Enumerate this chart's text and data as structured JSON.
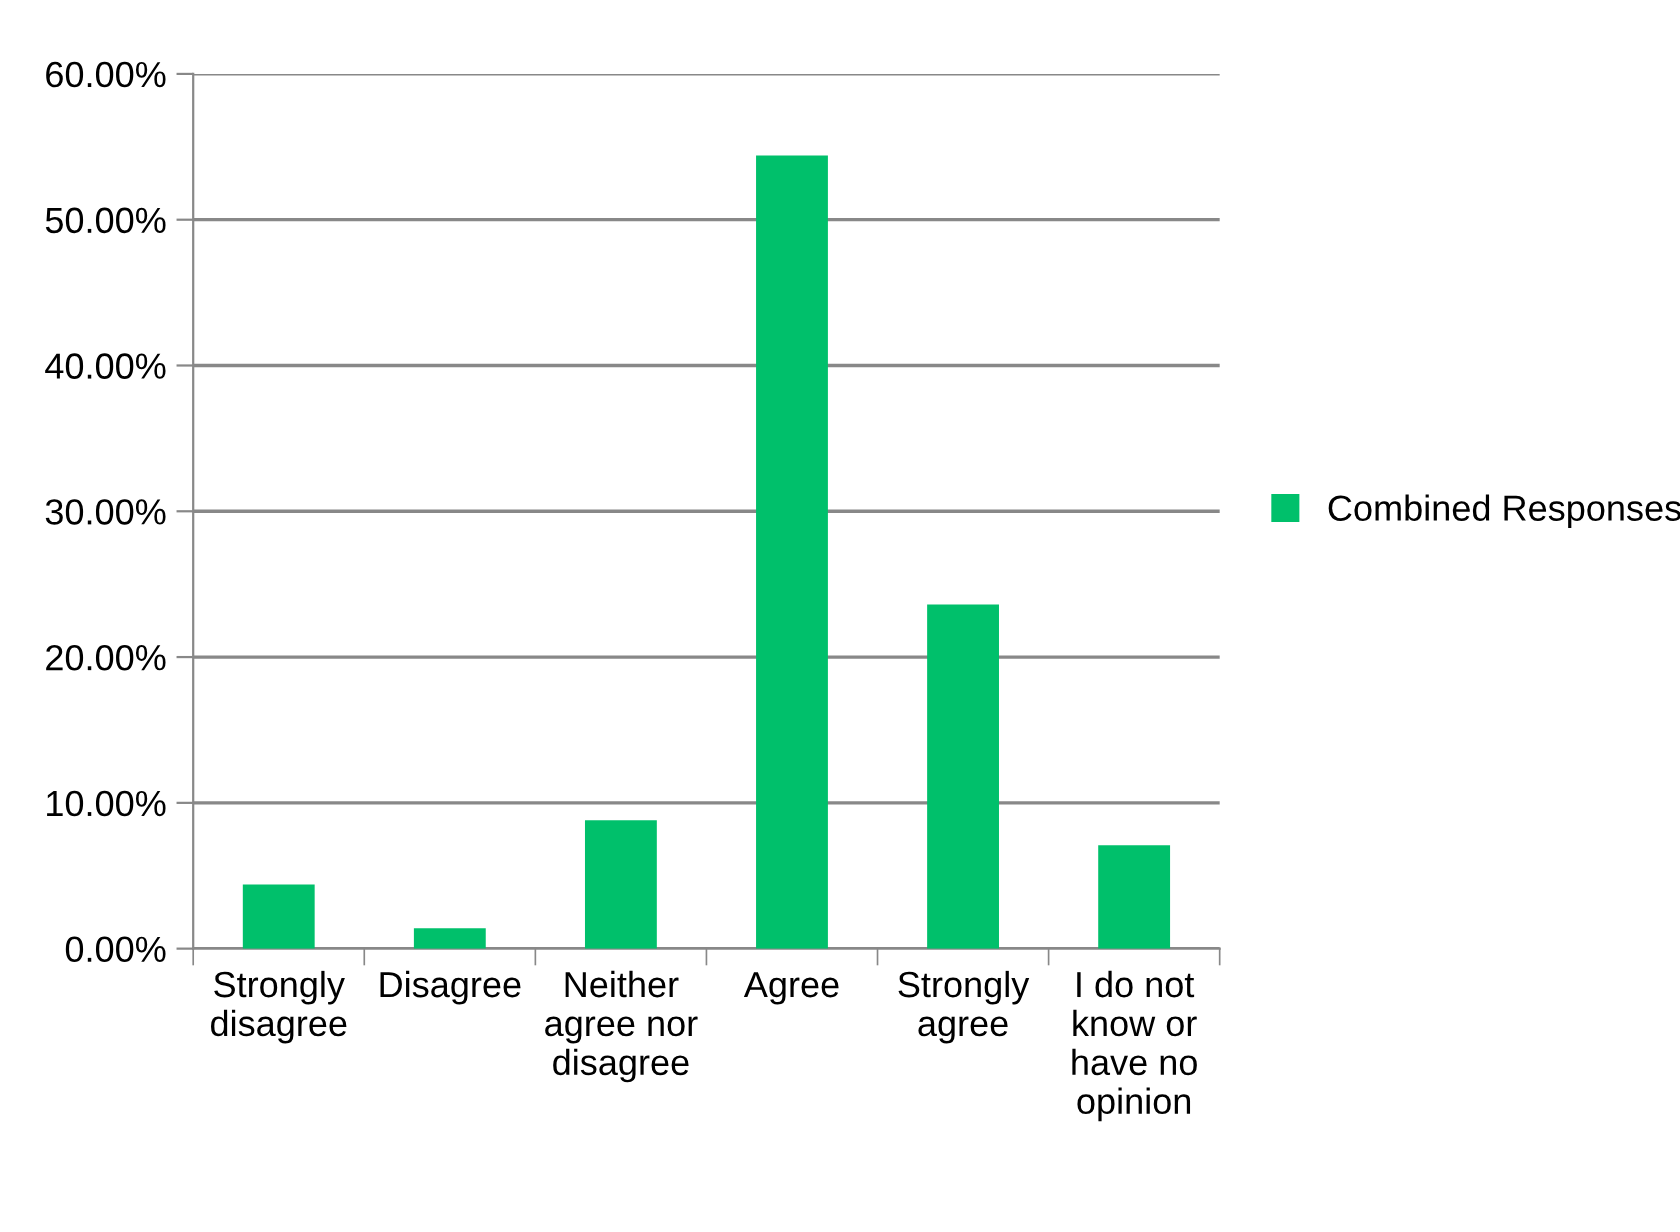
{
  "chart_data": {
    "type": "bar",
    "categories": [
      "Strongly\ndisagree",
      "Disagree",
      "Neither\nagree nor\ndisagree",
      "Agree",
      "Strongly\nagree",
      "I do not\nknow or\nhave no\nopinion"
    ],
    "series": [
      {
        "name": "Combined Responses",
        "color": "#00c06b",
        "values": [
          4.4,
          1.4,
          8.8,
          54.4,
          23.6,
          7.1
        ]
      }
    ],
    "ylim": [
      0,
      60
    ],
    "yticks": [
      {
        "value": 0,
        "label": "0.00%"
      },
      {
        "value": 10,
        "label": "10.00%"
      },
      {
        "value": 20,
        "label": "20.00%"
      },
      {
        "value": 30,
        "label": "30.00%"
      },
      {
        "value": 40,
        "label": "40.00%"
      },
      {
        "value": 50,
        "label": "50.00%"
      },
      {
        "value": 60,
        "label": "60.00%"
      }
    ],
    "grid": "y",
    "legend": "right"
  }
}
